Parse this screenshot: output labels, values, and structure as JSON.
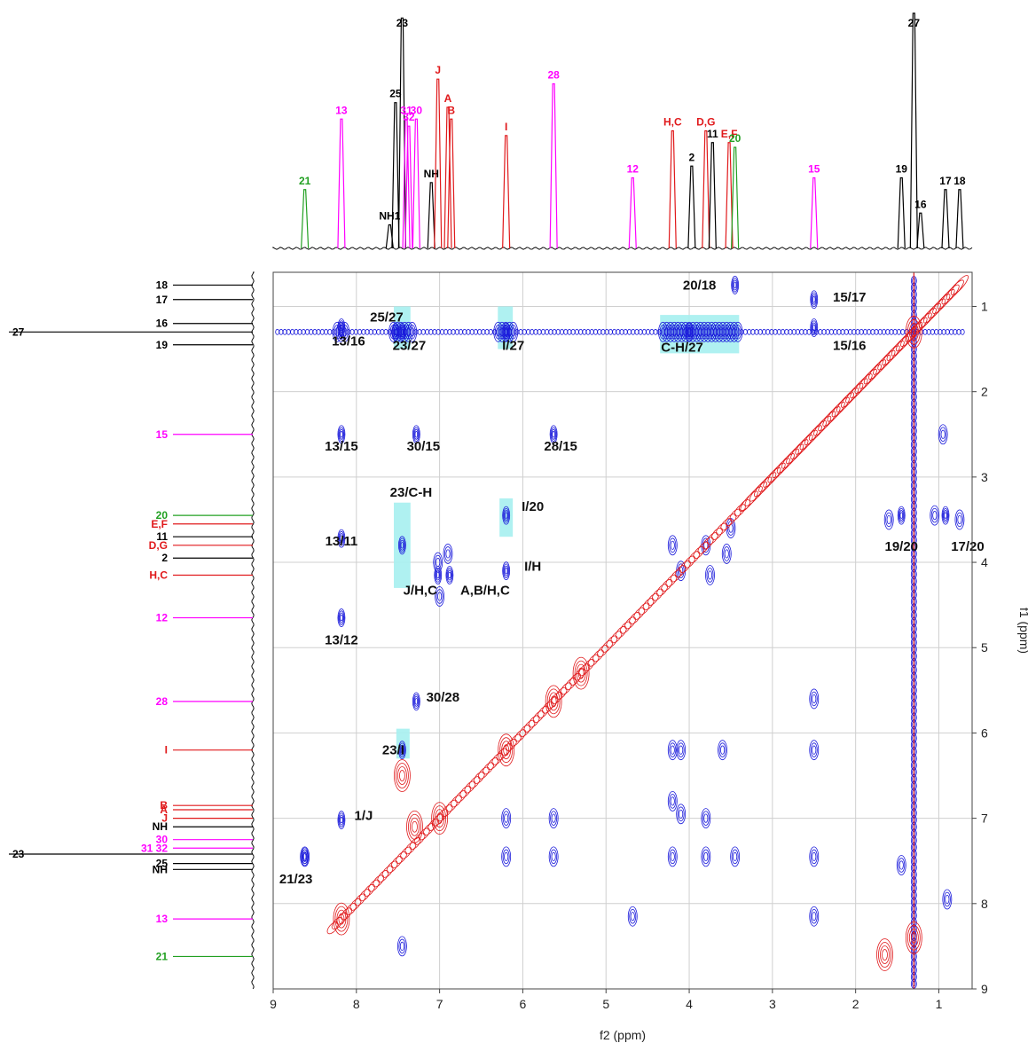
{
  "chart_data": {
    "type": "heatmap",
    "xlabel": "f2 (ppm)",
    "ylabel": "f1 (ppm)",
    "xlim": [
      9,
      0.6
    ],
    "ylim": [
      9,
      0.6
    ],
    "xticks": [
      9,
      8,
      7,
      6,
      5,
      4,
      3,
      2,
      1
    ],
    "yticks": [
      1,
      2,
      3,
      4,
      5,
      6,
      7,
      8,
      9
    ],
    "grid": true,
    "colors": {
      "positive": "#1a1adb",
      "negative": "#e0191b",
      "highlight": "#a6f0f0",
      "black": "#000000",
      "magenta": "#ff00ff",
      "green": "#22a022",
      "red": "#e0191b"
    },
    "top_spectrum_peaks": [
      {
        "label": "21",
        "x": 8.62,
        "h": 0.25,
        "color": "green"
      },
      {
        "label": "13",
        "x": 8.18,
        "h": 0.55,
        "color": "magenta"
      },
      {
        "label": "NH1",
        "x": 7.6,
        "h": 0.1,
        "color": "black"
      },
      {
        "label": "25",
        "x": 7.53,
        "h": 0.62,
        "color": "black"
      },
      {
        "label": "23",
        "x": 7.45,
        "h": 0.98,
        "color": "black"
      },
      {
        "label": "31",
        "x": 7.4,
        "h": 0.55,
        "color": "magenta"
      },
      {
        "label": "32",
        "x": 7.37,
        "h": 0.52,
        "color": "magenta"
      },
      {
        "label": "30",
        "x": 7.28,
        "h": 0.55,
        "color": "magenta"
      },
      {
        "label": "NH",
        "x": 7.1,
        "h": 0.28,
        "color": "black"
      },
      {
        "label": "J",
        "x": 7.02,
        "h": 0.72,
        "color": "red"
      },
      {
        "label": "A",
        "x": 6.9,
        "h": 0.6,
        "color": "red"
      },
      {
        "label": "B",
        "x": 6.86,
        "h": 0.55,
        "color": "red"
      },
      {
        "label": "I",
        "x": 6.2,
        "h": 0.48,
        "color": "red"
      },
      {
        "label": "28",
        "x": 5.63,
        "h": 0.7,
        "color": "magenta"
      },
      {
        "label": "12",
        "x": 4.68,
        "h": 0.3,
        "color": "magenta"
      },
      {
        "label": "H,C",
        "x": 4.2,
        "h": 0.5,
        "color": "red"
      },
      {
        "label": "2",
        "x": 3.97,
        "h": 0.35,
        "color": "black"
      },
      {
        "label": "D,G",
        "x": 3.8,
        "h": 0.5,
        "color": "red"
      },
      {
        "label": "11",
        "x": 3.72,
        "h": 0.45,
        "color": "black"
      },
      {
        "label": "E,F",
        "x": 3.52,
        "h": 0.45,
        "color": "red"
      },
      {
        "label": "20",
        "x": 3.45,
        "h": 0.43,
        "color": "green"
      },
      {
        "label": "15",
        "x": 2.5,
        "h": 0.3,
        "color": "magenta"
      },
      {
        "label": "19",
        "x": 1.45,
        "h": 0.3,
        "color": "black"
      },
      {
        "label": "27",
        "x": 1.3,
        "h": 1.0,
        "color": "black"
      },
      {
        "label": "16",
        "x": 1.22,
        "h": 0.15,
        "color": "black"
      },
      {
        "label": "17",
        "x": 0.92,
        "h": 0.25,
        "color": "black"
      },
      {
        "label": "18",
        "x": 0.75,
        "h": 0.25,
        "color": "black"
      }
    ],
    "side_spectrum_labels": [
      {
        "label": "18",
        "y": 0.75,
        "color": "black"
      },
      {
        "label": "17",
        "y": 0.92,
        "color": "black"
      },
      {
        "label": "16",
        "y": 1.2,
        "color": "black"
      },
      {
        "label": "27",
        "y": 1.3,
        "color": "black"
      },
      {
        "label": "19",
        "y": 1.45,
        "color": "black"
      },
      {
        "label": "15",
        "y": 2.5,
        "color": "magenta"
      },
      {
        "label": "20",
        "y": 3.45,
        "color": "green"
      },
      {
        "label": "E,F",
        "y": 3.55,
        "color": "red"
      },
      {
        "label": "11",
        "y": 3.7,
        "color": "black"
      },
      {
        "label": "D,G",
        "y": 3.8,
        "color": "red"
      },
      {
        "label": "2",
        "y": 3.95,
        "color": "black"
      },
      {
        "label": "H,C",
        "y": 4.15,
        "color": "red"
      },
      {
        "label": "12",
        "y": 4.65,
        "color": "magenta"
      },
      {
        "label": "28",
        "y": 5.63,
        "color": "magenta"
      },
      {
        "label": "I",
        "y": 6.2,
        "color": "red"
      },
      {
        "label": "B",
        "y": 6.85,
        "color": "red"
      },
      {
        "label": "A",
        "y": 6.9,
        "color": "red"
      },
      {
        "label": "J",
        "y": 7.0,
        "color": "red"
      },
      {
        "label": "NH",
        "y": 7.1,
        "color": "black"
      },
      {
        "label": "30",
        "y": 7.25,
        "color": "magenta"
      },
      {
        "label": "31 32",
        "y": 7.35,
        "color": "magenta"
      },
      {
        "label": "23",
        "y": 7.42,
        "color": "black"
      },
      {
        "label": "25",
        "y": 7.53,
        "color": "black"
      },
      {
        "label": "NH",
        "y": 7.6,
        "color": "black"
      },
      {
        "label": "13",
        "y": 8.18,
        "color": "magenta"
      },
      {
        "label": "21",
        "y": 8.62,
        "color": "green"
      }
    ],
    "cross_peaks": [
      {
        "label": "25/27",
        "x": 7.53,
        "y": 1.3
      },
      {
        "label": "13/16",
        "x": 8.18,
        "y": 1.25
      },
      {
        "label": "23/27",
        "x": 7.45,
        "y": 1.3
      },
      {
        "label": "I/27",
        "x": 6.2,
        "y": 1.3
      },
      {
        "label": "C-H/27",
        "x": 4.0,
        "y": 1.3
      },
      {
        "label": "20/18",
        "x": 3.45,
        "y": 0.75
      },
      {
        "label": "15/17",
        "x": 2.5,
        "y": 0.92
      },
      {
        "label": "15/16",
        "x": 2.5,
        "y": 1.25
      },
      {
        "label": "13/15",
        "x": 8.18,
        "y": 2.5
      },
      {
        "label": "30/15",
        "x": 7.28,
        "y": 2.5
      },
      {
        "label": "28/15",
        "x": 5.63,
        "y": 2.5
      },
      {
        "label": "23/C-H",
        "x": 7.45,
        "y": 3.8
      },
      {
        "label": "I/20",
        "x": 6.2,
        "y": 3.45
      },
      {
        "label": "13/11",
        "x": 8.18,
        "y": 3.72
      },
      {
        "label": "I/H",
        "x": 6.2,
        "y": 4.1
      },
      {
        "label": "J/H,C",
        "x": 7.02,
        "y": 4.15
      },
      {
        "label": "A,B/H,C",
        "x": 6.88,
        "y": 4.15
      },
      {
        "label": "13/12",
        "x": 8.18,
        "y": 4.65
      },
      {
        "label": "19/20",
        "x": 1.45,
        "y": 3.45
      },
      {
        "label": "17/20",
        "x": 0.92,
        "y": 3.45
      },
      {
        "label": "30/28",
        "x": 7.28,
        "y": 5.63
      },
      {
        "label": "23/I",
        "x": 7.45,
        "y": 6.2
      },
      {
        "label": "1/J",
        "x": 8.18,
        "y": 7.02
      },
      {
        "label": "21/23",
        "x": 8.62,
        "y": 7.45
      }
    ]
  }
}
